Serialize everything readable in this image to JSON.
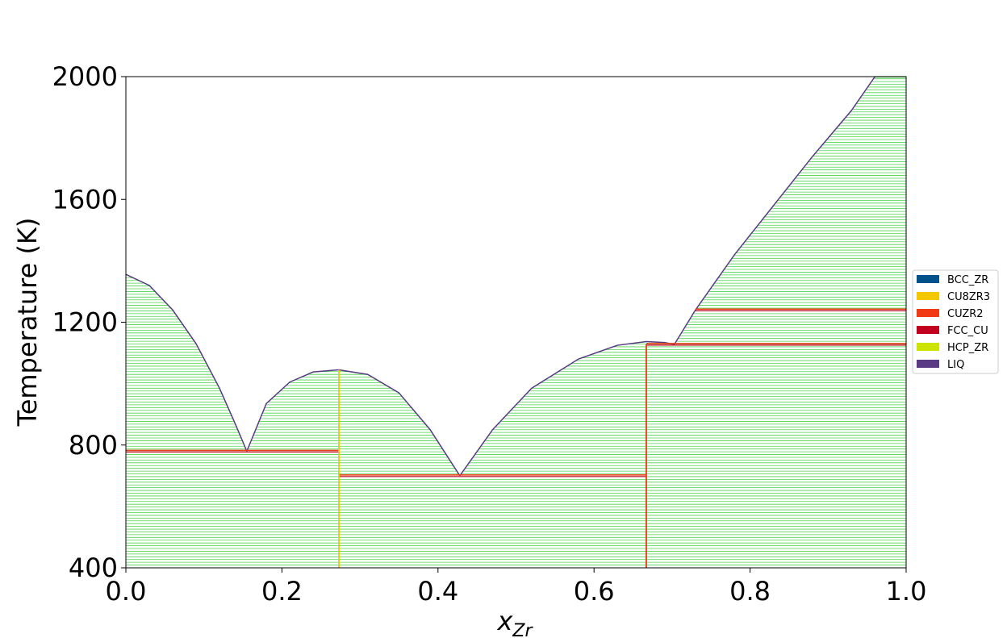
{
  "chart_data": {
    "type": "line",
    "title": "",
    "xlabel_main": "x",
    "xlabel_sub": "Zr",
    "ylabel": "Temperature (K)",
    "xlim": [
      0.0,
      1.0
    ],
    "ylim": [
      400,
      2000
    ],
    "xticks": [
      "0.0",
      "0.2",
      "0.4",
      "0.6",
      "0.8",
      "1.0"
    ],
    "yticks": [
      "400",
      "800",
      "1200",
      "1600",
      "2000"
    ],
    "legend_position": "right",
    "legend": [
      {
        "name": "BCC_ZR",
        "color": "#00538a"
      },
      {
        "name": "CU8ZR3",
        "color": "#f4c800"
      },
      {
        "name": "CUZR2",
        "color": "#f13a13"
      },
      {
        "name": "FCC_CU",
        "color": "#c10020"
      },
      {
        "name": "HCP_ZR",
        "color": "#cce400"
      },
      {
        "name": "LIQ",
        "color": "#593a84"
      }
    ],
    "tieline_color": "#2ecc2e",
    "liquidus": [
      {
        "x": [
          0.0,
          0.03,
          0.06,
          0.09,
          0.12,
          0.14,
          0.155
        ],
        "y": [
          1356,
          1320,
          1240,
          1130,
          985,
          870,
          780
        ]
      },
      {
        "x": [
          0.155,
          0.18,
          0.21,
          0.24,
          0.273
        ],
        "y": [
          780,
          935,
          1005,
          1038,
          1045
        ]
      },
      {
        "x": [
          0.273,
          0.31,
          0.35,
          0.39,
          0.428
        ],
        "y": [
          1045,
          1030,
          970,
          850,
          700
        ]
      },
      {
        "x": [
          0.428,
          0.47,
          0.52,
          0.58,
          0.63,
          0.667
        ],
        "y": [
          700,
          850,
          985,
          1080,
          1125,
          1137
        ]
      },
      {
        "x": [
          0.667,
          0.69,
          0.703
        ],
        "y": [
          1137,
          1134,
          1128
        ]
      },
      {
        "x": [
          0.703,
          0.73
        ],
        "y": [
          1128,
          1240
        ]
      },
      {
        "x": [
          0.73,
          0.78,
          0.83,
          0.88,
          0.93,
          0.96
        ],
        "y": [
          1240,
          1420,
          1580,
          1740,
          1890,
          2000
        ]
      }
    ],
    "horizontal_boundaries": [
      {
        "x": [
          0.0,
          0.273
        ],
        "y": 780
      },
      {
        "x": [
          0.273,
          0.667
        ],
        "y": 700
      },
      {
        "x": [
          0.667,
          1.0
        ],
        "y": 1128
      },
      {
        "x": [
          0.73,
          1.0
        ],
        "y": 1240
      }
    ],
    "vertical_boundaries": [
      {
        "x": 0.273,
        "y": [
          400,
          1045
        ],
        "color": "#f4c800"
      },
      {
        "x": 0.667,
        "y": [
          400,
          1128
        ],
        "color": "#f13a13"
      }
    ]
  }
}
